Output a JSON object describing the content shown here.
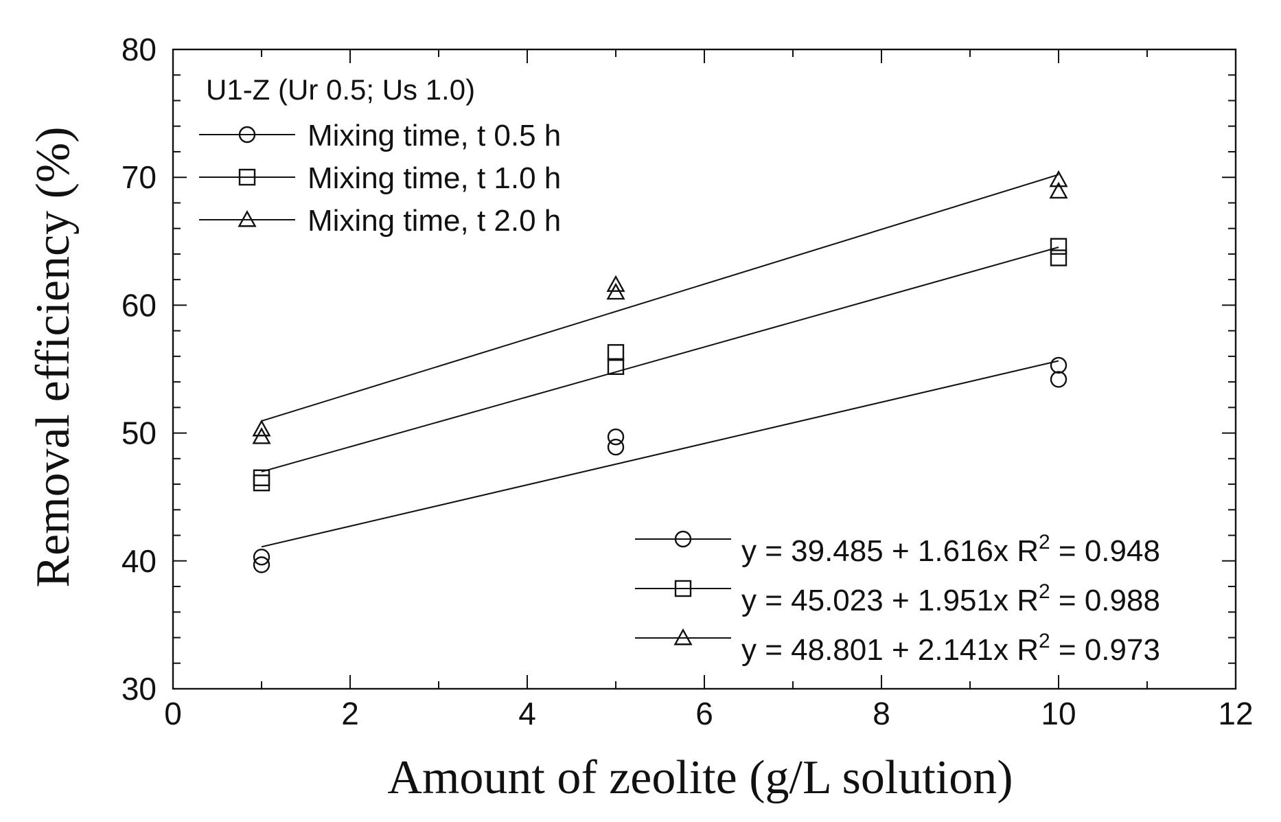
{
  "chart_data": {
    "type": "scatter",
    "title": "",
    "xlabel": "Amount of zeolite (g/L solution)",
    "ylabel": "Removal efficiency (%)",
    "xlim": [
      0,
      12
    ],
    "ylim": [
      30,
      80
    ],
    "xticks": [
      0,
      2,
      4,
      6,
      8,
      10,
      12
    ],
    "yticks": [
      30,
      40,
      50,
      60,
      70,
      80
    ],
    "grid": false,
    "legend_title": "U1-Z (Ur 0.5; Us 1.0)",
    "legend_position": "top-left",
    "fit_legend_position": "bottom-right",
    "series": [
      {
        "name": "Mixing time, t 0.5 h",
        "marker": "circle",
        "points": [
          [
            1,
            40.3
          ],
          [
            1,
            39.7
          ],
          [
            5,
            49.7
          ],
          [
            5,
            48.9
          ],
          [
            10,
            55.3
          ],
          [
            10,
            54.2
          ]
        ],
        "fit": {
          "intercept": 39.485,
          "slope": 1.616,
          "equation": "y = 39.485 + 1.616x",
          "r2_label": "R",
          "r2_value": " = 0.948"
        }
      },
      {
        "name": "Mixing time, t 1.0 h",
        "marker": "square",
        "points": [
          [
            1,
            46.5
          ],
          [
            1,
            46.1
          ],
          [
            5,
            56.3
          ],
          [
            5,
            55.2
          ],
          [
            10,
            64.6
          ],
          [
            10,
            63.7
          ]
        ],
        "fit": {
          "intercept": 45.023,
          "slope": 1.951,
          "equation": "y = 45.023 + 1.951x",
          "r2_label": "R",
          "r2_value": " = 0.988"
        }
      },
      {
        "name": "Mixing time, t 2.0 h",
        "marker": "triangle",
        "points": [
          [
            1,
            50.3
          ],
          [
            1,
            49.7
          ],
          [
            5,
            61.6
          ],
          [
            5,
            61.0
          ],
          [
            10,
            69.8
          ],
          [
            10,
            68.9
          ]
        ],
        "fit": {
          "intercept": 48.801,
          "slope": 2.141,
          "equation": "y = 48.801 + 2.141x",
          "r2_label": "R",
          "r2_value": " = 0.973"
        }
      }
    ]
  }
}
